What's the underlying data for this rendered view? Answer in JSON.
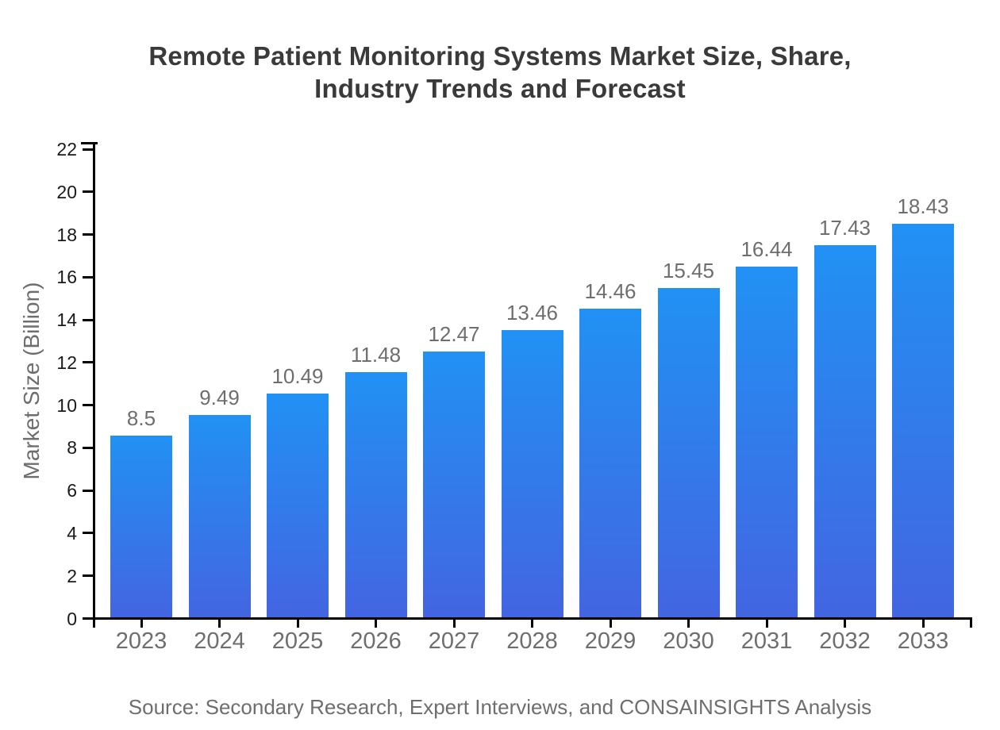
{
  "chart_data": {
    "type": "bar",
    "title": "Remote Patient Monitoring Systems Market Size, Share, Industry Trends and Forecast",
    "title_lines": [
      "Remote Patient Monitoring Systems Market Size, Share,",
      "Industry Trends and Forecast"
    ],
    "categories": [
      "2023",
      "2024",
      "2025",
      "2026",
      "2027",
      "2028",
      "2029",
      "2030",
      "2031",
      "2032",
      "2033"
    ],
    "values": [
      8.5,
      9.49,
      10.49,
      11.48,
      12.47,
      13.46,
      14.46,
      15.45,
      16.44,
      17.43,
      18.43
    ],
    "value_labels": [
      "8.5",
      "9.49",
      "10.49",
      "11.48",
      "12.47",
      "13.46",
      "14.46",
      "15.45",
      "16.44",
      "17.43",
      "18.43"
    ],
    "xlabel": "",
    "ylabel": "Market Size (Billion)",
    "ylim": [
      0,
      22
    ],
    "yticks": [
      0,
      2,
      4,
      6,
      8,
      10,
      12,
      14,
      16,
      18,
      20,
      22
    ],
    "grid": false,
    "legend": "none",
    "source": "Source: Secondary Research, Expert Interviews, and CONSAINSIGHTS Analysis"
  },
  "colors": {
    "bar_gradient_top": "#2191F4",
    "bar_gradient_bottom": "#4365E1",
    "title": "#3a3a3a",
    "gray_label": "#6e6e6e",
    "ytick_label": "#1a1a1a",
    "axis": "#000000",
    "background": "#ffffff"
  }
}
